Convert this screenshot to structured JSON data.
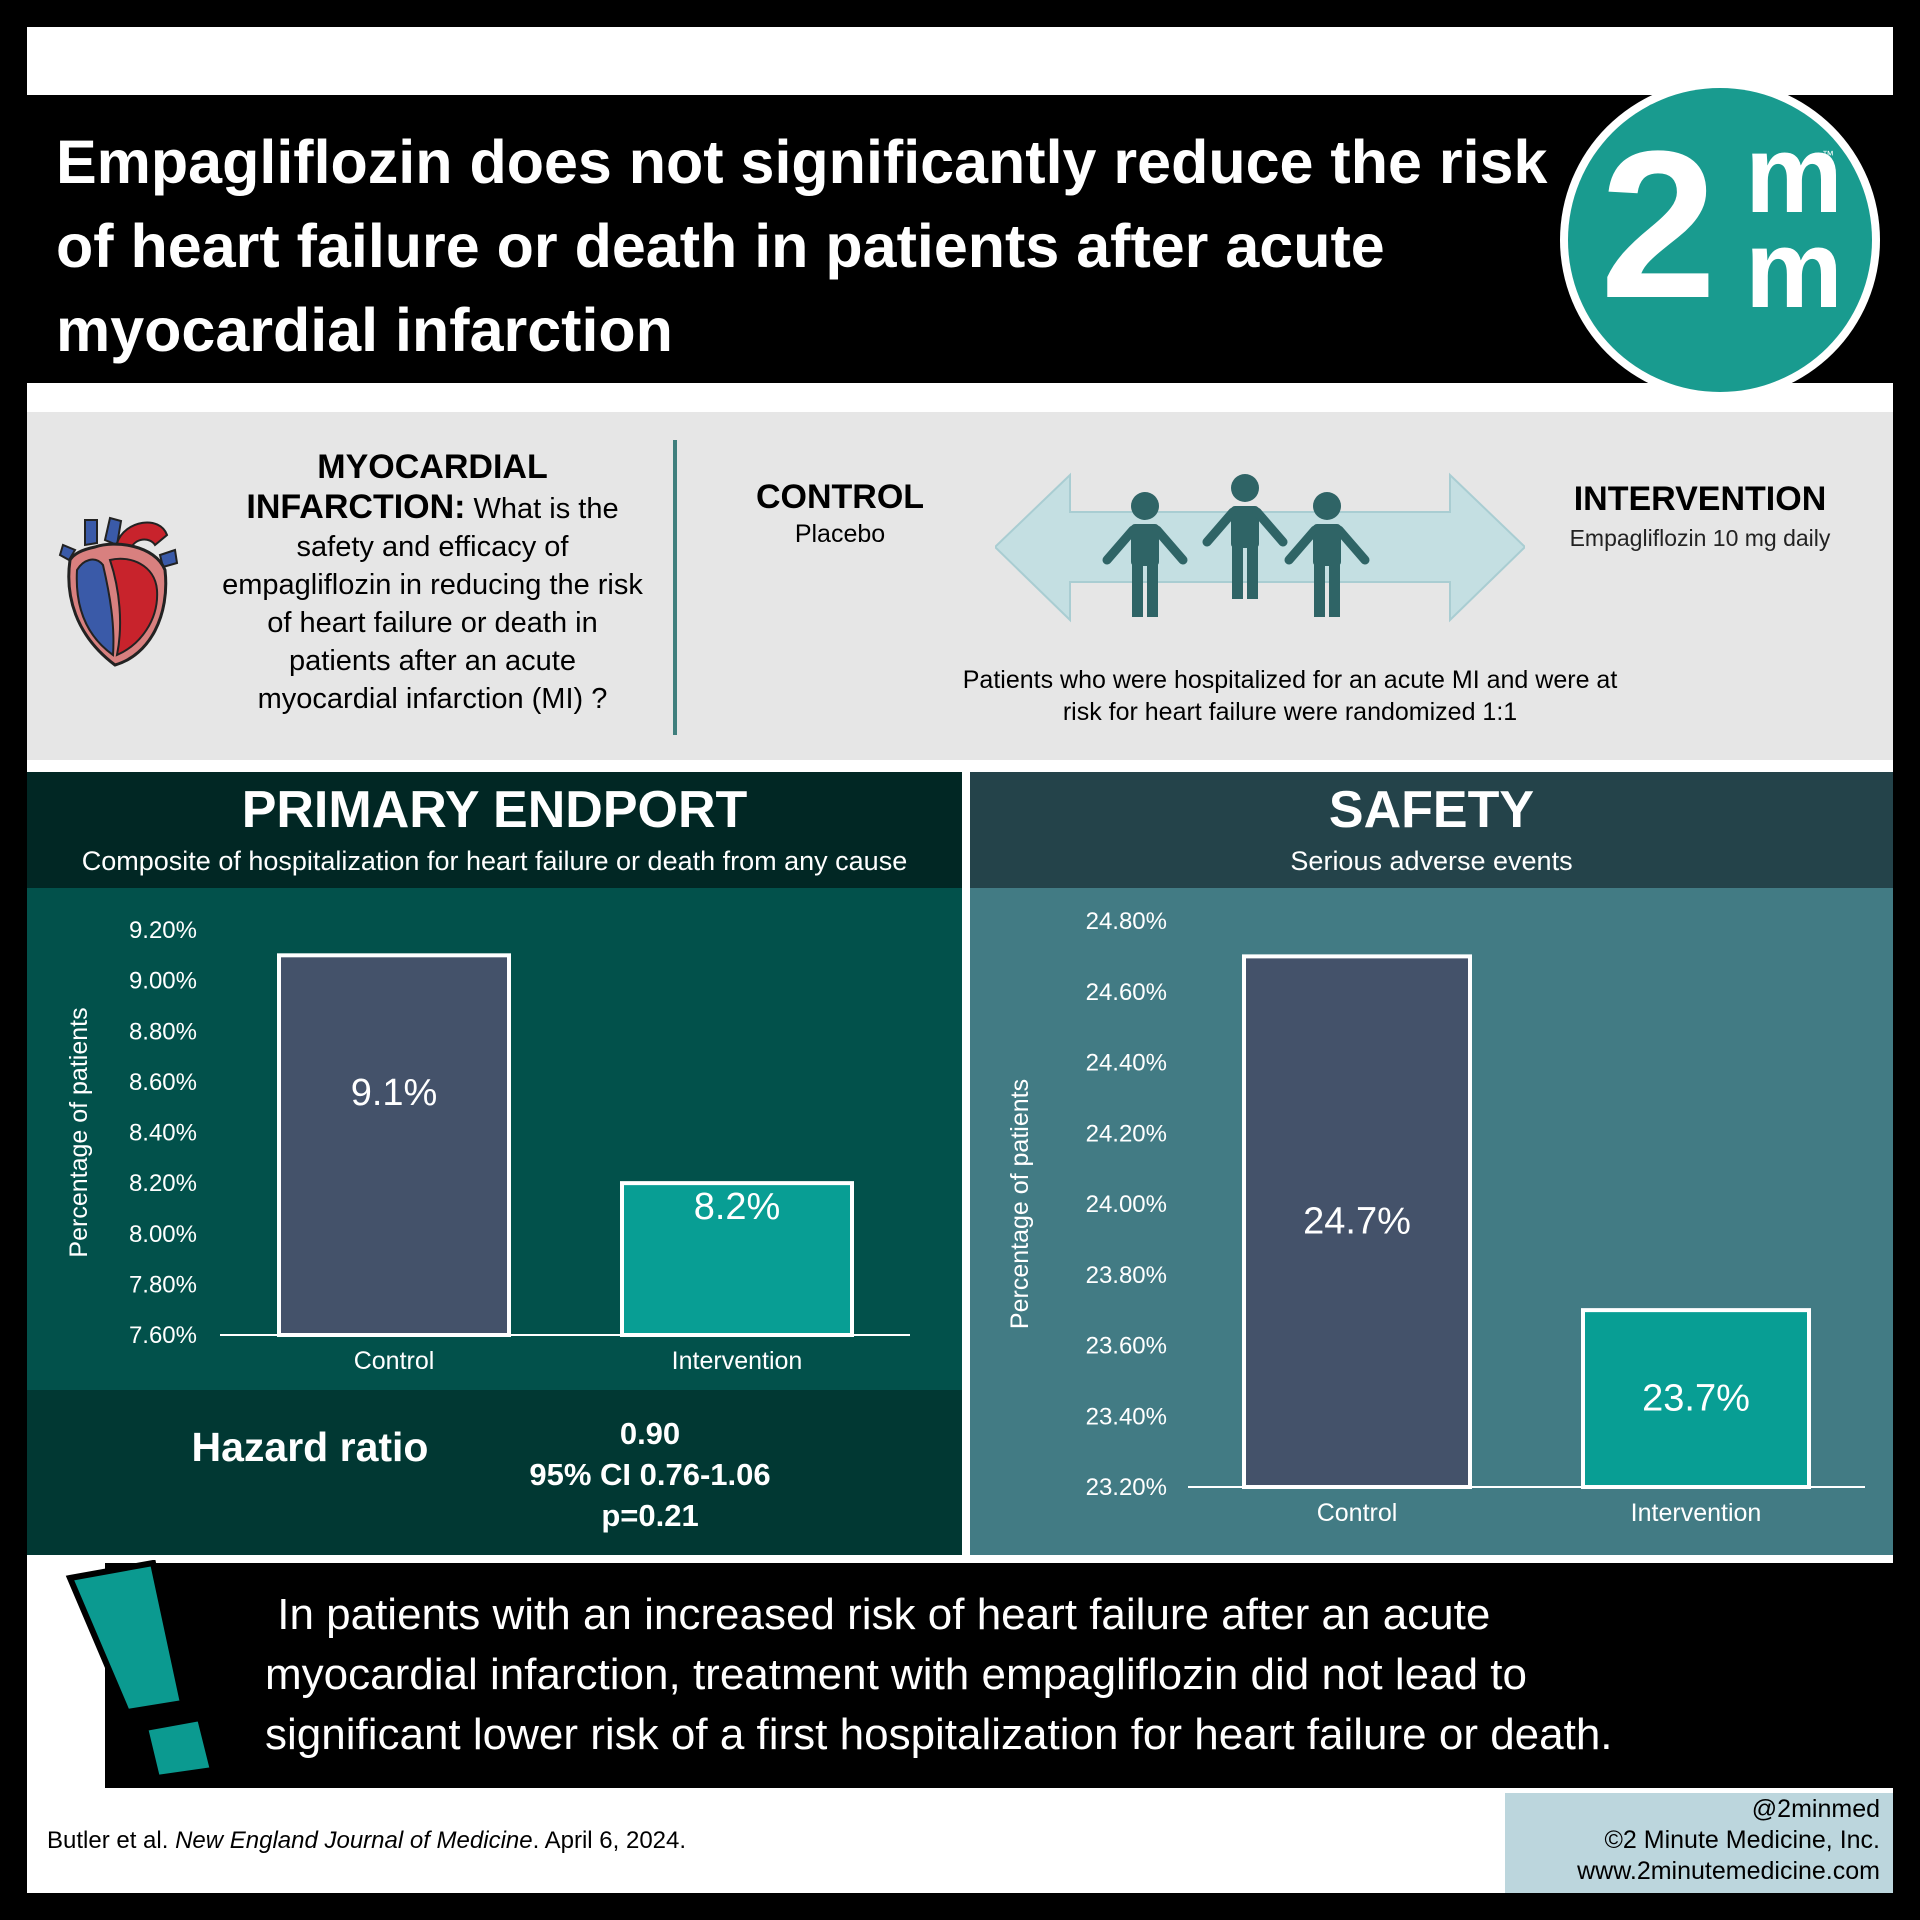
{
  "title": "Empagliflozin does not significantly reduce the risk of heart failure or death in patients after acute myocardial infarction",
  "logo": {
    "digit": "2",
    "m_top": "m",
    "m_bottom": "m",
    "tm": "™"
  },
  "question": {
    "topic": "MYOCARDIAL INFARCTION:",
    "text": "What is the safety and efficacy of empagliflozin in reducing the risk of heart failure or death in patients after an acute myocardial infarction (MI) ?"
  },
  "design": {
    "control_title": "CONTROL",
    "control_sub": "Placebo",
    "intervention_title": "INTERVENTION",
    "intervention_sub": "Empagliflozin 10 mg daily",
    "description": "Patients who were hospitalized for an acute MI and were at risk for heart failure were randomized 1:1"
  },
  "primary": {
    "title": "PRIMARY ENDPORT",
    "subtitle": "Composite of hospitalization for heart failure or death from any cause",
    "hazard_label": "Hazard ratio",
    "hr_value": "0.90",
    "hr_ci": "95% CI 0.76-1.06",
    "hr_p": "p=0.21"
  },
  "safety": {
    "title": "SAFETY",
    "subtitle": "Serious adverse events"
  },
  "chart_data": [
    {
      "type": "bar",
      "categories": [
        "Control",
        "Intervention"
      ],
      "values": [
        9.1,
        8.2
      ],
      "data_labels": [
        "9.1%",
        "8.2%"
      ],
      "ylabel": "Percentage of patients",
      "ylim": [
        7.6,
        9.2
      ],
      "yticks": [
        "7.60%",
        "7.80%",
        "8.00%",
        "8.20%",
        "8.40%",
        "8.60%",
        "8.80%",
        "9.00%",
        "9.20%"
      ],
      "colors": [
        "#44526a",
        "#089e94"
      ],
      "grid": false
    },
    {
      "type": "bar",
      "categories": [
        "Control",
        "Intervention"
      ],
      "values": [
        24.7,
        23.7
      ],
      "data_labels": [
        "24.7%",
        "23.7%"
      ],
      "ylabel": "Percentage of patients",
      "ylim": [
        23.2,
        24.8
      ],
      "yticks": [
        "23.20%",
        "23.40%",
        "23.60%",
        "23.80%",
        "24.00%",
        "24.20%",
        "24.40%",
        "24.60%",
        "24.80%"
      ],
      "colors": [
        "#44526a",
        "#089e94"
      ],
      "grid": false
    }
  ],
  "conclusion": " In patients with an increased risk of heart failure after an acute\nmyocardial infarction, treatment with empagliflozin did not lead to\nsignificant lower risk of a first hospitalization for heart failure or death.",
  "footer": {
    "citation_authors": "Butler et al. ",
    "citation_journal": "New England Journal of Medicine",
    "citation_date": ". April 6, 2024.",
    "handle": "@2minmed",
    "copyright": "©2 Minute Medicine, Inc.",
    "website": "www.2minutemedicine.com"
  },
  "colors": {
    "accent": "#199b8f",
    "control_bar": "#44526a",
    "intervention_bar": "#089e94"
  },
  "icons": [
    "heart-icon",
    "people-icon",
    "double-arrow-icon",
    "exclamation-icon"
  ]
}
